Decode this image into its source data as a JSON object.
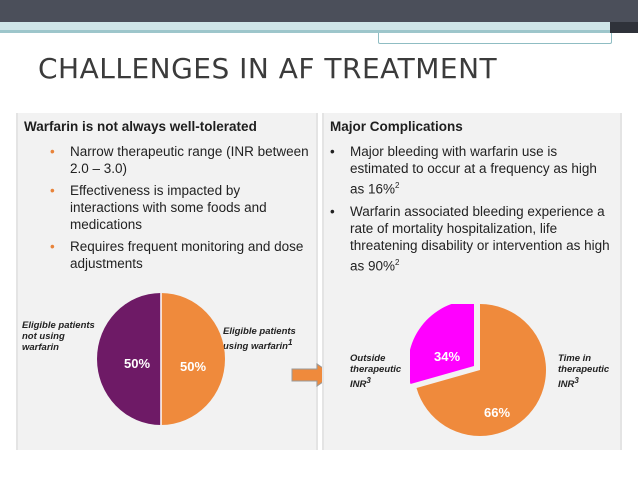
{
  "slide": {
    "title": "CHALLENGES IN AF TREATMENT"
  },
  "left_panel": {
    "title": "Warfarin is not always well-tolerated",
    "bullets": [
      "Narrow therapeutic range (INR between 2.0 – 3.0)",
      "Effectiveness is impacted by interactions with some foods and medications",
      "Requires frequent monitoring and dose adjustments"
    ],
    "pie": {
      "left_label": "Eligible patients\nnot using\nwarfarin",
      "right_label": "Eligible patients\nusing warfarin",
      "right_label_sup": "1",
      "left_value": "50%",
      "right_value": "50%"
    }
  },
  "right_panel": {
    "title": "Major Complications",
    "bullets": [
      {
        "text": "Major bleeding with warfarin use is estimated to occur at a frequency as high as 16%",
        "sup": "2"
      },
      {
        "text": "Warfarin associated bleeding experience a rate of mortality hospitalization, life threatening disability or intervention as high as 90%",
        "sup": "2"
      }
    ],
    "pie": {
      "left_label": "Outside\ntherapeutic\nINR",
      "left_label_sup": "3",
      "right_label": "Time in\ntherapeutic\nINR",
      "right_label_sup": "3",
      "small_value": "34%",
      "large_value": "66%"
    }
  },
  "colors": {
    "purple": "#6e1a66",
    "orange": "#ef8a3c",
    "magenta": "#ff00ff",
    "arrow": "#ef8a3c"
  }
}
